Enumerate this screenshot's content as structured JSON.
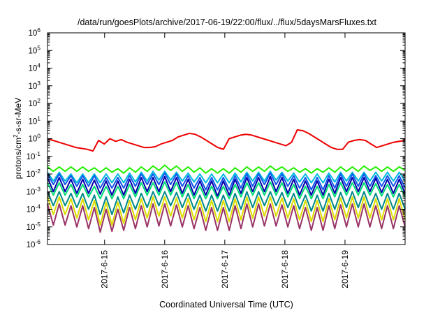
{
  "chart_data": {
    "type": "line",
    "title": "/data/run/goesPlots/archive/2017-06-19/22:00/flux/../flux/5daysMarsFluxes.txt",
    "xlabel": "Coordinated Universal Time (UTC)",
    "ylabel_base": "protons/cm",
    "ylabel_sup": "2",
    "ylabel_rest": "-s-sr-MeV",
    "yscale": "log",
    "ylim_exp": [
      -6,
      6
    ],
    "ytick_base": "10",
    "ytick_exps": [
      "-6",
      "-5",
      "-4",
      "-3",
      "-2",
      "-1",
      "0",
      "1",
      "2",
      "3",
      "4",
      "5",
      "6"
    ],
    "xlim_days": [
      0,
      5.95
    ],
    "xticks": [
      {
        "label": "2017-6-15",
        "day": 0.95
      },
      {
        "label": "2017-6-16",
        "day": 1.95
      },
      {
        "label": "2017-6-17",
        "day": 2.95
      },
      {
        "label": "2017-6-18",
        "day": 3.95
      },
      {
        "label": "2017-6-19",
        "day": 4.95
      }
    ],
    "grid": false,
    "legend": "none",
    "series": [
      {
        "color": "#ee0000",
        "log10": [
          0.0,
          -0.1,
          -0.2,
          -0.3,
          -0.4,
          -0.5,
          -0.55,
          -0.6,
          -0.7,
          -0.1,
          -0.3,
          0.0,
          -0.15,
          -0.05,
          -0.2,
          -0.3,
          -0.4,
          -0.5,
          -0.5,
          -0.45,
          -0.3,
          -0.2,
          -0.1,
          0.1,
          0.2,
          0.3,
          0.25,
          0.1,
          -0.1,
          -0.3,
          -0.5,
          -0.6,
          0.0,
          0.1,
          0.2,
          0.25,
          0.2,
          0.1,
          0.0,
          -0.1,
          -0.2,
          -0.3,
          -0.4,
          -0.2,
          0.5,
          0.45,
          0.3,
          0.1,
          -0.1,
          -0.3,
          -0.5,
          -0.6,
          -0.6,
          -0.2,
          -0.1,
          -0.05,
          -0.1,
          -0.3,
          -0.5,
          -0.4,
          -0.3,
          -0.2,
          -0.15,
          -0.1
        ]
      },
      {
        "color": "#22ee00",
        "log10": [
          -1.6,
          -1.85,
          -1.6,
          -1.85,
          -1.6,
          -1.85,
          -1.6,
          -1.85,
          -1.65,
          -1.9,
          -1.65,
          -1.9,
          -1.7,
          -1.95,
          -1.65,
          -1.9,
          -1.6,
          -1.85,
          -1.55,
          -1.8,
          -1.5,
          -1.8,
          -1.55,
          -1.85,
          -1.6,
          -1.9,
          -1.65,
          -1.95,
          -1.7,
          -1.95,
          -1.7,
          -1.95,
          -1.65,
          -1.9,
          -1.6,
          -1.85,
          -1.6,
          -1.85,
          -1.55,
          -1.8,
          -1.6,
          -1.85,
          -1.65,
          -1.9,
          -1.7,
          -1.95,
          -1.7,
          -1.9,
          -1.65,
          -1.9,
          -1.6,
          -1.85,
          -1.6,
          -1.85,
          -1.55,
          -1.8,
          -1.6,
          -1.85,
          -1.6,
          -1.85,
          -1.6,
          -1.8
        ]
      },
      {
        "color": "#00bbdd",
        "log10": [
          -1.9,
          -2.4,
          -1.9,
          -2.4,
          -2.0,
          -2.5,
          -2.0,
          -2.5,
          -2.0,
          -2.5,
          -2.0,
          -2.5,
          -2.0,
          -2.5,
          -1.95,
          -2.45,
          -1.9,
          -2.4,
          -1.85,
          -2.35,
          -1.85,
          -2.35,
          -1.9,
          -2.4,
          -1.95,
          -2.45,
          -2.0,
          -2.5,
          -2.0,
          -2.5,
          -2.0,
          -2.5,
          -1.95,
          -2.45,
          -1.9,
          -2.4,
          -1.9,
          -2.4,
          -1.85,
          -2.35,
          -1.9,
          -2.4,
          -1.95,
          -2.45,
          -2.0,
          -2.5,
          -2.0,
          -2.5,
          -1.95,
          -2.45,
          -1.9,
          -2.4,
          -1.9,
          -2.4,
          -1.9,
          -2.4,
          -1.9,
          -2.4,
          -1.9,
          -2.4,
          -1.9,
          -2.4
        ]
      },
      {
        "color": "#1155ee",
        "log10": [
          -2.0,
          -2.6,
          -2.0,
          -2.6,
          -2.1,
          -2.7,
          -2.1,
          -2.7,
          -2.1,
          -2.8,
          -2.2,
          -2.8,
          -2.2,
          -2.8,
          -2.1,
          -2.7,
          -2.0,
          -2.6,
          -2.0,
          -2.6,
          -1.95,
          -2.6,
          -2.0,
          -2.7,
          -2.1,
          -2.8,
          -2.2,
          -2.9,
          -2.2,
          -2.9,
          -2.2,
          -2.9,
          -2.1,
          -2.8,
          -2.0,
          -2.7,
          -2.0,
          -2.6,
          -1.95,
          -2.6,
          -2.0,
          -2.7,
          -2.1,
          -2.8,
          -2.2,
          -2.9,
          -2.2,
          -2.9,
          -2.1,
          -2.8,
          -2.0,
          -2.7,
          -2.0,
          -2.7,
          -2.0,
          -2.7,
          -2.1,
          -2.7,
          -2.1,
          -2.7,
          -2.1,
          -2.8
        ]
      },
      {
        "color": "#00dd77",
        "log10": [
          -2.5,
          -3.2,
          -2.5,
          -3.2,
          -2.6,
          -3.3,
          -2.6,
          -3.3,
          -2.7,
          -3.4,
          -2.7,
          -3.4,
          -2.7,
          -3.4,
          -2.6,
          -3.3,
          -2.5,
          -3.2,
          -2.5,
          -3.2,
          -2.45,
          -3.2,
          -2.5,
          -3.3,
          -2.6,
          -3.4,
          -2.7,
          -3.4,
          -2.7,
          -3.4,
          -2.7,
          -3.4,
          -2.6,
          -3.3,
          -2.5,
          -3.2,
          -2.5,
          -3.2,
          -2.45,
          -3.2,
          -2.5,
          -3.3,
          -2.6,
          -3.4,
          -2.7,
          -3.4,
          -2.7,
          -3.4,
          -2.6,
          -3.3,
          -2.5,
          -3.2,
          -2.5,
          -3.2,
          -2.5,
          -3.2,
          -2.55,
          -3.25,
          -2.6,
          -3.3,
          -2.6,
          -3.3
        ]
      },
      {
        "color": "#0000aa",
        "log10": [
          -2.2,
          -3.0,
          -2.2,
          -3.0,
          -2.3,
          -3.1,
          -2.3,
          -3.1,
          -2.35,
          -3.15,
          -2.4,
          -3.2,
          -2.4,
          -3.2,
          -2.3,
          -3.1,
          -2.2,
          -3.0,
          -2.2,
          -3.0,
          -2.15,
          -3.0,
          -2.2,
          -3.1,
          -2.3,
          -3.2,
          -2.4,
          -3.2,
          -2.4,
          -3.25,
          -2.4,
          -3.2,
          -2.3,
          -3.1,
          -2.2,
          -3.0,
          -2.2,
          -3.0,
          -2.15,
          -3.0,
          -2.2,
          -3.1,
          -2.3,
          -3.2,
          -2.4,
          -3.2,
          -2.4,
          -3.2,
          -2.3,
          -3.1,
          -2.2,
          -3.0,
          -2.2,
          -3.0,
          -2.2,
          -3.0,
          -2.25,
          -3.05,
          -2.3,
          -3.1,
          -2.3,
          -3.1
        ]
      },
      {
        "color": "#008888",
        "log10": [
          -3.0,
          -3.8,
          -3.0,
          -3.8,
          -3.1,
          -3.9,
          -3.1,
          -4.0,
          -3.2,
          -4.3,
          -3.3,
          -4.3,
          -3.3,
          -4.2,
          -3.2,
          -4.0,
          -3.1,
          -3.9,
          -3.0,
          -3.8,
          -3.0,
          -3.8,
          -3.05,
          -3.9,
          -3.1,
          -4.0,
          -3.2,
          -4.1,
          -3.2,
          -4.1,
          -3.2,
          -4.1,
          -3.1,
          -4.0,
          -3.0,
          -3.9,
          -3.0,
          -3.8,
          -3.0,
          -3.8,
          -3.05,
          -3.9,
          -3.1,
          -4.0,
          -3.2,
          -4.1,
          -3.2,
          -4.1,
          -3.1,
          -4.0,
          -3.05,
          -3.9,
          -3.0,
          -3.9,
          -3.0,
          -3.9,
          -3.1,
          -4.0,
          -3.1,
          -4.0,
          -3.1,
          -4.0
        ]
      },
      {
        "color": "#dddd00",
        "log10": [
          -3.3,
          -4.3,
          -3.3,
          -4.3,
          -3.4,
          -4.5,
          -3.4,
          -4.6,
          -3.5,
          -4.9,
          -3.6,
          -4.9,
          -3.6,
          -4.8,
          -3.5,
          -4.6,
          -3.4,
          -4.5,
          -3.3,
          -4.4,
          -3.3,
          -4.4,
          -3.35,
          -4.5,
          -3.4,
          -4.6,
          -3.5,
          -4.7,
          -3.5,
          -4.7,
          -3.5,
          -4.7,
          -3.4,
          -4.6,
          -3.3,
          -4.5,
          -3.3,
          -4.4,
          -3.3,
          -4.4,
          -3.35,
          -4.5,
          -3.4,
          -4.6,
          -3.5,
          -4.7,
          -3.5,
          -4.7,
          -3.4,
          -4.6,
          -3.35,
          -4.5,
          -3.3,
          -4.5,
          -3.3,
          -4.5,
          -3.4,
          -4.6,
          -3.4,
          -4.6,
          -3.4,
          -4.6
        ]
      },
      {
        "color": "#993366",
        "log10": [
          -3.7,
          -4.9,
          -3.7,
          -4.9,
          -3.8,
          -5.0,
          -3.8,
          -5.1,
          -3.9,
          -5.3,
          -4.0,
          -5.25,
          -4.0,
          -5.2,
          -3.9,
          -5.1,
          -3.8,
          -5.0,
          -3.7,
          -4.95,
          -3.7,
          -4.95,
          -3.75,
          -5.0,
          -3.8,
          -5.1,
          -3.9,
          -5.2,
          -3.9,
          -5.2,
          -3.9,
          -5.2,
          -3.8,
          -5.1,
          -3.7,
          -5.0,
          -3.7,
          -4.95,
          -3.7,
          -4.95,
          -3.75,
          -5.0,
          -3.8,
          -5.1,
          -3.9,
          -5.2,
          -3.9,
          -5.2,
          -3.8,
          -5.1,
          -3.75,
          -5.0,
          -3.7,
          -5.0,
          -3.7,
          -5.0,
          -3.8,
          -5.1,
          -3.8,
          -5.1,
          -3.8,
          -5.0
        ]
      }
    ]
  }
}
